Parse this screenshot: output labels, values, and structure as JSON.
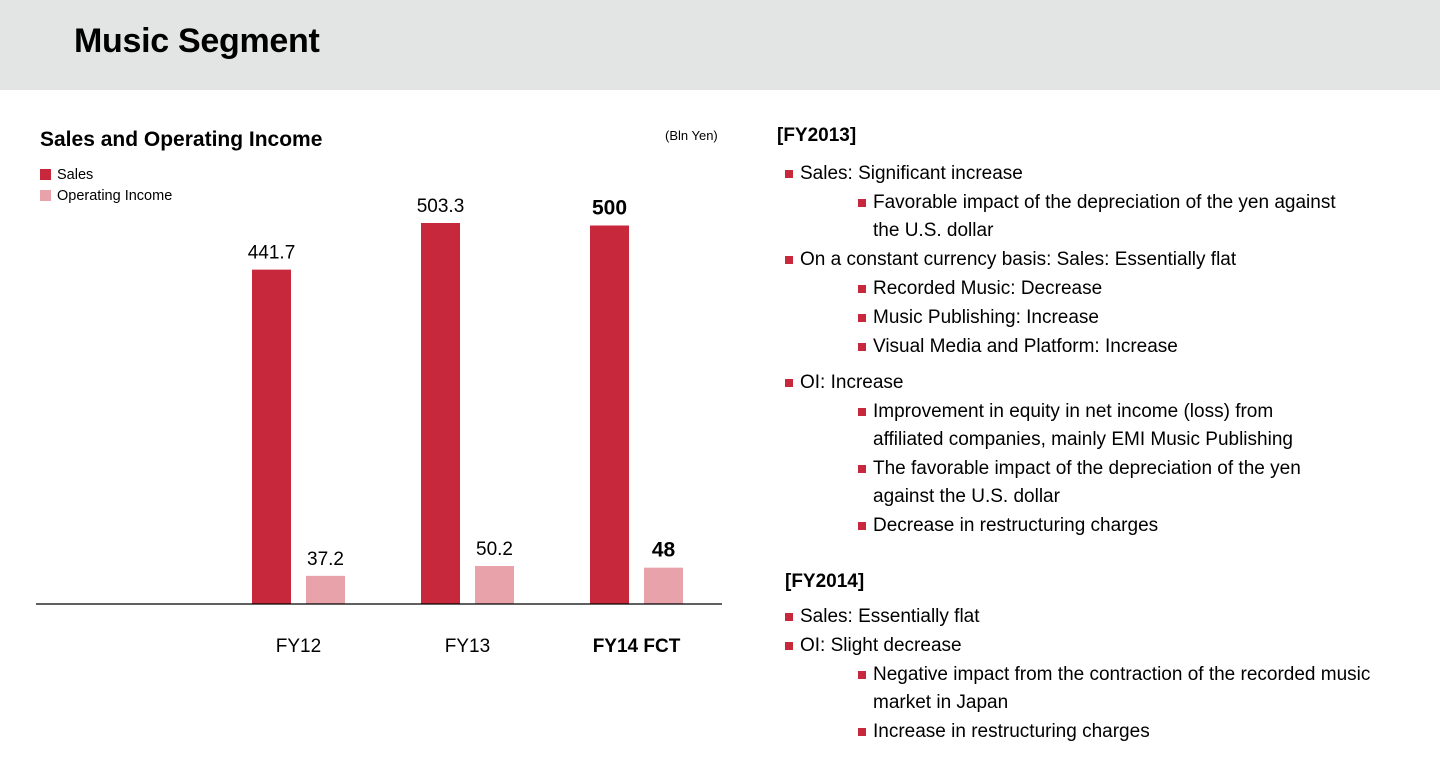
{
  "page": {
    "title": "Music Segment"
  },
  "chart_data": {
    "type": "bar",
    "title": "Sales and Operating Income",
    "unit_note": "(Bln Yen)",
    "categories": [
      "FY12",
      "FY13",
      "FY14 FCT"
    ],
    "category_bold": [
      false,
      false,
      true
    ],
    "series": [
      {
        "name": "Sales",
        "color": "#c8283c",
        "values": [
          441.7,
          503.3,
          500
        ],
        "labels": [
          "441.7",
          "503.3",
          "500"
        ]
      },
      {
        "name": "Operating Income",
        "color": "#e8a2aa",
        "values": [
          37.2,
          50.2,
          48
        ],
        "labels": [
          "37.2",
          "50.2",
          "48"
        ]
      }
    ],
    "legend_position": "top-left",
    "grid": false,
    "ylim": [
      0,
      503.3
    ]
  },
  "notes": {
    "bullet_color": "#c8283c",
    "fy2013": {
      "title": "[FY2013]",
      "items": [
        {
          "level": 1,
          "text": "Sales: Significant increase"
        },
        {
          "level": 2,
          "lines": [
            "Favorable impact of the depreciation of the yen against",
            "the U.S. dollar"
          ]
        },
        {
          "level": 1,
          "text": "On a constant currency basis: Sales: Essentially flat"
        },
        {
          "level": 2,
          "text": "Recorded Music: Decrease"
        },
        {
          "level": 2,
          "text": "Music Publishing: Increase"
        },
        {
          "level": 2,
          "text": "Visual Media and Platform: Increase"
        },
        {
          "level": 1,
          "text": "OI: Increase"
        },
        {
          "level": 2,
          "lines": [
            "Improvement in equity in net income (loss) from",
            "affiliated companies, mainly EMI Music Publishing"
          ]
        },
        {
          "level": 2,
          "lines": [
            "The favorable impact of the depreciation of the yen",
            "against the U.S. dollar"
          ]
        },
        {
          "level": 2,
          "text": "Decrease in restructuring charges"
        }
      ]
    },
    "fy2014": {
      "title": "[FY2014]",
      "items": [
        {
          "level": 1,
          "text": "Sales: Essentially flat"
        },
        {
          "level": 1,
          "text": "OI: Slight decrease"
        },
        {
          "level": 2,
          "lines": [
            "Negative impact from the contraction of the recorded music",
            "market in Japan"
          ]
        },
        {
          "level": 2,
          "text": "Increase in restructuring charges"
        }
      ]
    }
  }
}
